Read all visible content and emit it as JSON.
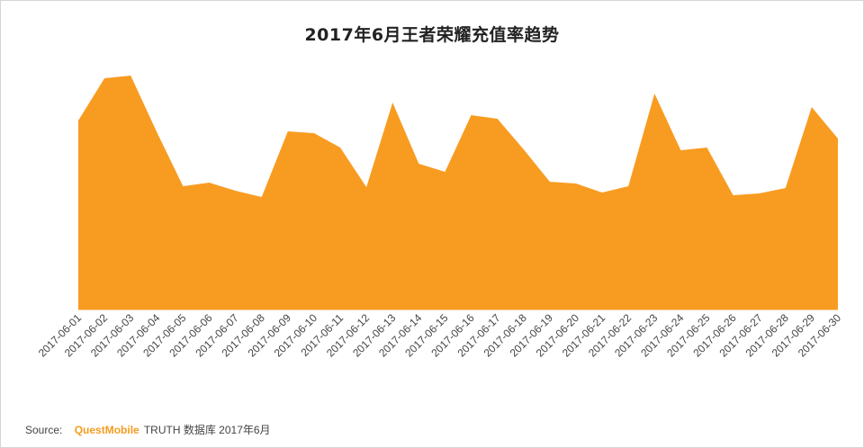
{
  "chart_data": {
    "type": "area",
    "title": "2017年6月王者荣耀充值率趋势",
    "color": "#f89c21",
    "x": [
      "2017-06-01",
      "2017-06-02",
      "2017-06-03",
      "2017-06-04",
      "2017-06-05",
      "2017-06-06",
      "2017-06-07",
      "2017-06-08",
      "2017-06-09",
      "2017-06-10",
      "2017-06-11",
      "2017-06-12",
      "2017-06-13",
      "2017-06-14",
      "2017-06-15",
      "2017-06-16",
      "2017-06-17",
      "2017-06-18",
      "2017-06-19",
      "2017-06-20",
      "2017-06-21",
      "2017-06-22",
      "2017-06-23",
      "2017-06-24",
      "2017-06-25",
      "2017-06-26",
      "2017-06-27",
      "2017-06-28",
      "2017-06-29",
      "2017-06-30"
    ],
    "values": [
      210,
      257,
      260,
      197,
      137,
      141,
      132,
      125,
      198,
      196,
      180,
      136,
      230,
      162,
      153,
      216,
      212,
      178,
      142,
      140,
      130,
      137,
      240,
      177,
      180,
      127,
      129,
      135,
      225,
      190
    ],
    "ylim": [
      0,
      270
    ],
    "xlabel": "",
    "ylabel": "",
    "grid": false,
    "legend": "none"
  },
  "source": {
    "prefix": "Source:",
    "brand": "QuestMobile",
    "text": "TRUTH 数据库 2017年6月"
  }
}
